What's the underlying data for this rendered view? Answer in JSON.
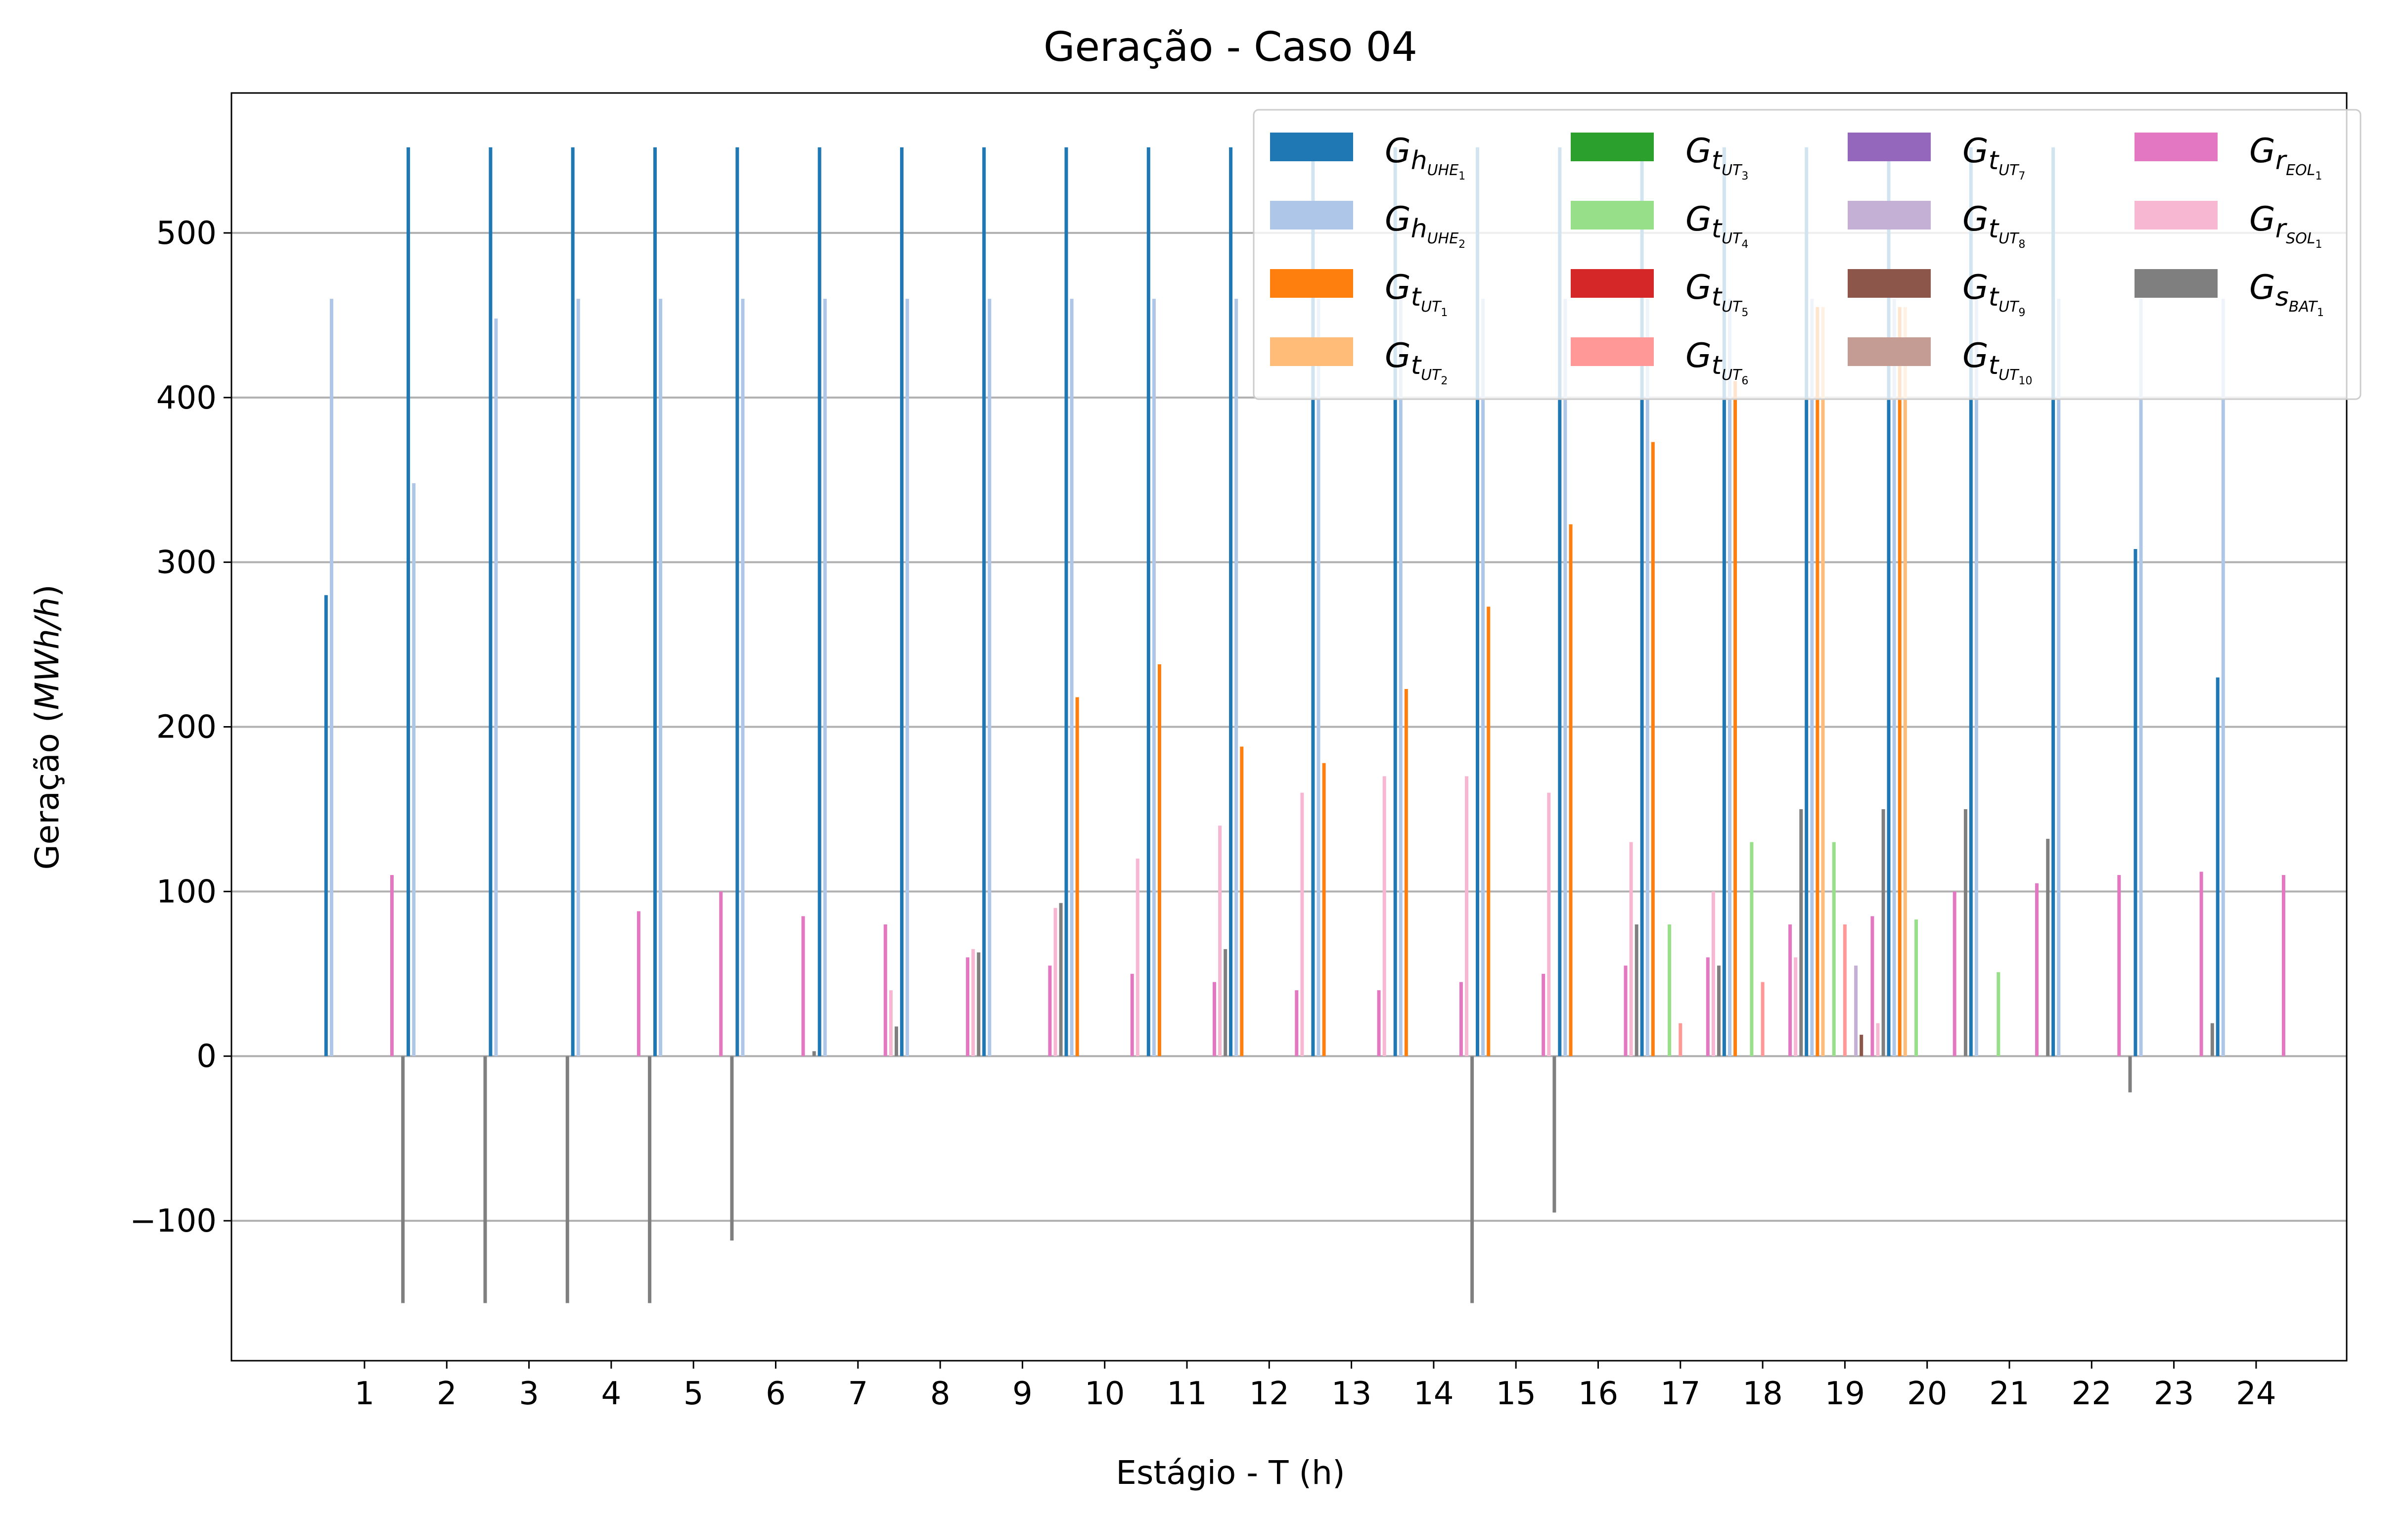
{
  "chart_data": {
    "type": "bar",
    "title": "Geração - Caso 04",
    "xlabel": "Estágio - T (h)",
    "ylabel_prefix": "Geração (",
    "ylabel_unit": "MWh/h",
    "ylabel_suffix": ")",
    "ylim": [
      -185,
      585
    ],
    "yticks": [
      -100,
      0,
      100,
      200,
      300,
      400,
      500
    ],
    "ytick_labels": [
      "−100",
      "0",
      "100",
      "200",
      "300",
      "400",
      "500"
    ],
    "grid": "horizontal",
    "legend": "top-right",
    "categories": [
      "1",
      "2",
      "3",
      "4",
      "5",
      "6",
      "7",
      "8",
      "9",
      "10",
      "11",
      "12",
      "13",
      "14",
      "15",
      "16",
      "17",
      "18",
      "19",
      "20",
      "21",
      "22",
      "23",
      "24"
    ],
    "series": [
      {
        "name": "G_h_UHE1",
        "base": "G",
        "sub": "h",
        "subsub": "UHE",
        "idx": "1",
        "color": "#1f77b4",
        "values": [
          280,
          552,
          552,
          552,
          552,
          552,
          552,
          552,
          552,
          552,
          552,
          552,
          552,
          552,
          552,
          552,
          552,
          552,
          552,
          552,
          552,
          552,
          308,
          230
        ]
      },
      {
        "name": "G_h_UHE2",
        "base": "G",
        "sub": "h",
        "subsub": "UHE",
        "idx": "2",
        "color": "#aec7e8",
        "values": [
          460,
          348,
          448,
          460,
          460,
          460,
          460,
          460,
          460,
          460,
          460,
          460,
          460,
          460,
          460,
          460,
          460,
          460,
          460,
          460,
          460,
          460,
          460,
          460
        ]
      },
      {
        "name": "G_t_UT1",
        "base": "G",
        "sub": "t",
        "subsub": "UT",
        "idx": "1",
        "color": "#ff7f0e",
        "values": [
          0,
          0,
          0,
          0,
          0,
          0,
          0,
          0,
          0,
          218,
          238,
          188,
          178,
          223,
          273,
          323,
          373,
          410,
          455,
          455,
          0,
          0,
          0,
          0
        ]
      },
      {
        "name": "G_t_UT2",
        "base": "G",
        "sub": "t",
        "subsub": "UT",
        "idx": "2",
        "color": "#ffbb78",
        "values": [
          0,
          0,
          0,
          0,
          0,
          0,
          0,
          0,
          0,
          0,
          0,
          0,
          0,
          0,
          0,
          0,
          0,
          0,
          455,
          455,
          0,
          0,
          0,
          0
        ]
      },
      {
        "name": "G_t_UT3",
        "base": "G",
        "sub": "t",
        "subsub": "UT",
        "idx": "3",
        "color": "#2ca02c",
        "values": [
          0,
          0,
          0,
          0,
          0,
          0,
          0,
          0,
          0,
          0,
          0,
          0,
          0,
          0,
          0,
          0,
          0,
          0,
          0,
          0,
          0,
          0,
          0,
          0
        ]
      },
      {
        "name": "G_t_UT4",
        "base": "G",
        "sub": "t",
        "subsub": "UT",
        "idx": "4",
        "color": "#98df8a",
        "values": [
          0,
          0,
          0,
          0,
          0,
          0,
          0,
          0,
          0,
          0,
          0,
          0,
          0,
          0,
          0,
          0,
          80,
          130,
          130,
          83,
          51,
          0,
          0,
          0
        ]
      },
      {
        "name": "G_t_UT5",
        "base": "G",
        "sub": "t",
        "subsub": "UT",
        "idx": "5",
        "color": "#d62728",
        "values": [
          0,
          0,
          0,
          0,
          0,
          0,
          0,
          0,
          0,
          0,
          0,
          0,
          0,
          0,
          0,
          0,
          0,
          0,
          0,
          0,
          0,
          0,
          0,
          0
        ]
      },
      {
        "name": "G_t_UT6",
        "base": "G",
        "sub": "t",
        "subsub": "UT",
        "idx": "6",
        "color": "#ff9896",
        "values": [
          0,
          0,
          0,
          0,
          0,
          0,
          0,
          0,
          0,
          0,
          0,
          0,
          0,
          0,
          0,
          0,
          20,
          45,
          80,
          0,
          0,
          0,
          0,
          0
        ]
      },
      {
        "name": "G_t_UT7",
        "base": "G",
        "sub": "t",
        "subsub": "UT",
        "idx": "7",
        "color": "#9467bd",
        "values": [
          0,
          0,
          0,
          0,
          0,
          0,
          0,
          0,
          0,
          0,
          0,
          0,
          0,
          0,
          0,
          0,
          0,
          0,
          0,
          0,
          0,
          0,
          0,
          0
        ]
      },
      {
        "name": "G_t_UT8",
        "base": "G",
        "sub": "t",
        "subsub": "UT",
        "idx": "8",
        "color": "#c5b0d5",
        "values": [
          0,
          0,
          0,
          0,
          0,
          0,
          0,
          0,
          0,
          0,
          0,
          0,
          0,
          0,
          0,
          0,
          0,
          0,
          55,
          0,
          0,
          0,
          0,
          0
        ]
      },
      {
        "name": "G_t_UT9",
        "base": "G",
        "sub": "t",
        "subsub": "UT",
        "idx": "9",
        "color": "#8c564b",
        "values": [
          0,
          0,
          0,
          0,
          0,
          0,
          0,
          0,
          0,
          0,
          0,
          0,
          0,
          0,
          0,
          0,
          0,
          0,
          13,
          0,
          0,
          0,
          0,
          0
        ]
      },
      {
        "name": "G_t_UT10",
        "base": "G",
        "sub": "t",
        "subsub": "UT",
        "idx": "10",
        "color": "#c49c94",
        "values": [
          0,
          0,
          0,
          0,
          0,
          0,
          0,
          0,
          0,
          0,
          0,
          0,
          0,
          0,
          0,
          0,
          0,
          0,
          0,
          0,
          0,
          0,
          0,
          0
        ]
      },
      {
        "name": "G_r_EOL1",
        "base": "G",
        "sub": "r",
        "subsub": "EOL",
        "idx": "1",
        "color": "#e377c2",
        "values": [
          110,
          0,
          0,
          88,
          100,
          85,
          80,
          60,
          55,
          50,
          45,
          40,
          40,
          45,
          50,
          55,
          60,
          80,
          85,
          100,
          105,
          110,
          112,
          110
        ]
      },
      {
        "name": "G_r_SOL1",
        "base": "G",
        "sub": "r",
        "subsub": "SOL",
        "idx": "1",
        "color": "#f7b6d2",
        "values": [
          0,
          0,
          0,
          0,
          0,
          0,
          40,
          65,
          90,
          120,
          140,
          160,
          170,
          170,
          160,
          130,
          100,
          60,
          20,
          0,
          0,
          0,
          0,
          0
        ]
      },
      {
        "name": "G_s_BAT1",
        "base": "G",
        "sub": "s",
        "subsub": "BAT",
        "idx": "1",
        "color": "#7f7f7f",
        "values": [
          -150,
          -150,
          -150,
          -150,
          -112,
          3,
          18,
          63,
          93,
          0,
          65,
          0,
          0,
          -150,
          -95,
          80,
          55,
          150,
          150,
          150,
          132,
          -22,
          20,
          0
        ]
      }
    ]
  }
}
